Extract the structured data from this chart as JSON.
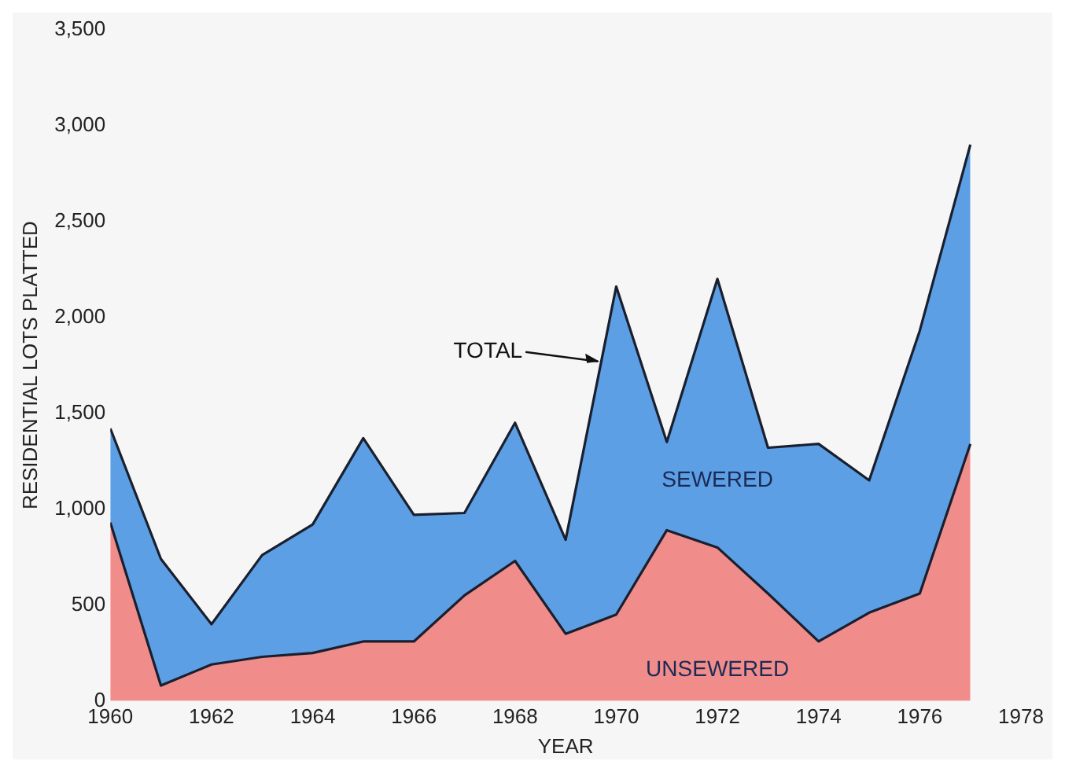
{
  "chart_data": {
    "type": "area",
    "stacked": true,
    "xlabel": "YEAR",
    "ylabel": "RESIDENTIAL LOTS PLATTED",
    "x": [
      1960,
      1961,
      1962,
      1963,
      1964,
      1965,
      1966,
      1967,
      1968,
      1969,
      1970,
      1971,
      1972,
      1973,
      1974,
      1975,
      1976,
      1977
    ],
    "series": [
      {
        "name": "UNSEWERED",
        "color": "#f08c8a",
        "values": [
          930,
          80,
          190,
          230,
          250,
          310,
          310,
          550,
          730,
          350,
          450,
          890,
          800,
          560,
          310,
          460,
          560,
          1340
        ]
      },
      {
        "name": "SEWERED",
        "color": "#5d9fe4",
        "values": [
          490,
          660,
          210,
          530,
          670,
          1060,
          660,
          430,
          720,
          490,
          1710,
          460,
          1400,
          760,
          1030,
          690,
          1370,
          1560
        ]
      }
    ],
    "annotations": [
      {
        "text": "TOTAL",
        "x": 1969.7,
        "y": 1770
      }
    ],
    "xlim": [
      1960,
      1978
    ],
    "xticks": [
      1960,
      1962,
      1964,
      1966,
      1968,
      1970,
      1972,
      1974,
      1976,
      1978
    ],
    "ylim": [
      0,
      3500
    ],
    "yticks": [
      0,
      {
        "value": 500,
        "label": "500"
      },
      {
        "value": 1000,
        "label": "1,000"
      },
      {
        "value": 1500,
        "label": "1,500"
      },
      {
        "value": 2000,
        "label": "2,000"
      },
      {
        "value": 2500,
        "label": "2,500"
      },
      {
        "value": 3000,
        "label": "3,000"
      },
      {
        "value": 3500,
        "label": "3,500"
      }
    ],
    "grid": false,
    "legend": false
  }
}
